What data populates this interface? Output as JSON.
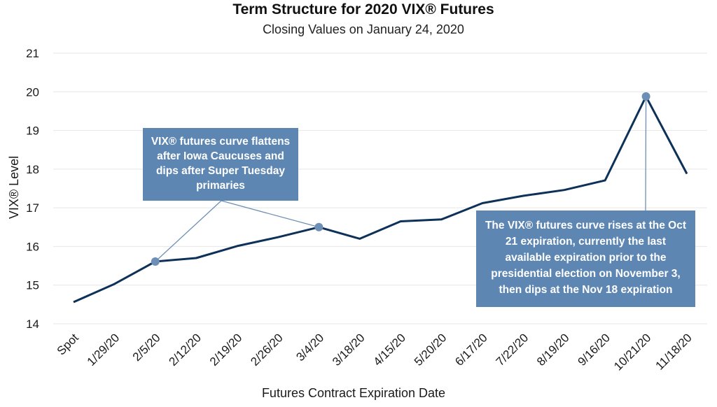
{
  "chart_data": {
    "type": "line",
    "title": "Term Structure for 2020 VIX® Futures",
    "subtitle": "Closing Values on January 24, 2020",
    "xlabel": "Futures Contract Expiration Date",
    "ylabel": "VIX® Level",
    "ylim": [
      14,
      21
    ],
    "yticks": [
      14,
      15,
      16,
      17,
      18,
      19,
      20,
      21
    ],
    "grid": true,
    "categories": [
      "Spot",
      "1/29/20",
      "2/5/20",
      "2/12/20",
      "2/19/20",
      "2/26/20",
      "3/4/20",
      "3/18/20",
      "4/15/20",
      "5/20/20",
      "6/17/20",
      "7/22/20",
      "8/19/20",
      "9/16/20",
      "10/21/20",
      "11/18/20"
    ],
    "values": [
      14.56,
      15.03,
      15.61,
      15.7,
      16.01,
      16.24,
      16.5,
      16.2,
      16.65,
      16.7,
      17.12,
      17.31,
      17.46,
      17.71,
      19.88,
      17.88
    ],
    "highlights": [
      "2/5/20",
      "3/4/20",
      "10/21/20"
    ],
    "annotations": [
      {
        "lines": [
          "VIX® futures curve flattens",
          "after Iowa Caucuses and",
          "dips after Super Tuesday",
          "primaries"
        ],
        "targets": [
          "2/5/20",
          "3/4/20"
        ]
      },
      {
        "lines": [
          "The VIX® futures curve rises at the Oct",
          "21 expiration, currently the last",
          "available expiration prior to the",
          "presidential election on November 3,",
          "then dips at the Nov 18 expiration"
        ],
        "targets": [
          "10/21/20"
        ]
      }
    ],
    "colors": {
      "line": "#0d3158",
      "marker": "#6e8fb5",
      "annotation_box": "#5d86b3",
      "grid": "#e6e6e6"
    }
  }
}
